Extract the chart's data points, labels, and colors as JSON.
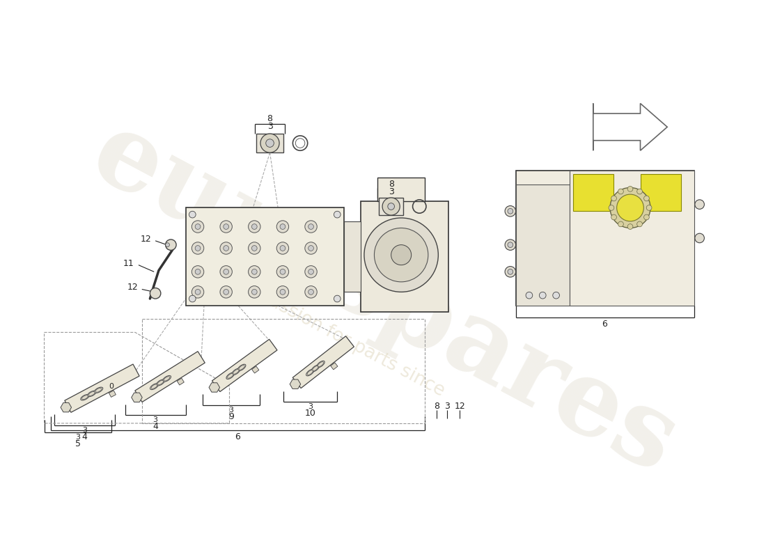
{
  "bg_color": "#ffffff",
  "line_color": "#222222",
  "part_fill": "#f5f2e8",
  "part_edge": "#444444",
  "dashed_color": "#999999",
  "watermark_main": "eurospares",
  "watermark_sub": "a passion for parts since",
  "watermark_color": "#e8e4da",
  "watermark_sub_color": "#e0d8c0",
  "wm_alpha": 0.55,
  "highlight_yellow": "#e8e030",
  "label_fontsize": 9,
  "small_label_fontsize": 8,
  "parts": {
    "small_bracket_top_label": "8",
    "small_bracket_top_sub": "3",
    "small_bracket_right_label": "8",
    "small_bracket_right_sub": "3",
    "cable_label": "11",
    "connector1_label": "12",
    "connector2_label": "12",
    "sol5_label": "5",
    "sol4_label": "4",
    "sol9_label": "9",
    "sol10_label": "10",
    "right_block_label": "6",
    "bottom_wide_label": "6",
    "right_labels": [
      "8",
      "3",
      "12"
    ]
  }
}
